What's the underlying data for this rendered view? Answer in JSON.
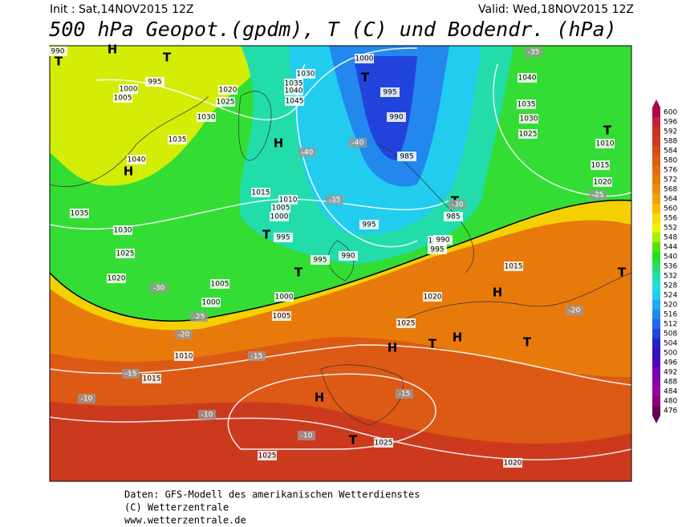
{
  "header": {
    "init": "Init : Sat,14NOV2015 12Z",
    "valid": "Valid: Wed,18NOV2015 12Z",
    "title": "500 hPa Geopot.(gpdm), T (C) und Bodendr. (hPa)"
  },
  "colorbar": {
    "levels": [
      600,
      596,
      592,
      588,
      584,
      580,
      576,
      572,
      568,
      564,
      560,
      556,
      552,
      548,
      544,
      540,
      536,
      532,
      528,
      524,
      520,
      516,
      512,
      508,
      504,
      500,
      496,
      492,
      488,
      484,
      480,
      476
    ],
    "colors": [
      "#b0004f",
      "#c0203a",
      "#c83028",
      "#cc3a1e",
      "#d44a18",
      "#dc5a14",
      "#e26a10",
      "#e87a0c",
      "#ee8c08",
      "#f4a004",
      "#f8bc00",
      "#fcdc00",
      "#f0f000",
      "#aaee00",
      "#55e000",
      "#22dd22",
      "#22dd66",
      "#22ddaa",
      "#22dddd",
      "#22ccee",
      "#22aaee",
      "#2288ee",
      "#2266ee",
      "#2244dd",
      "#2222cc",
      "#3311bb",
      "#5500bb",
      "#7700bb",
      "#8800aa",
      "#990099",
      "#880077",
      "#660055"
    ]
  },
  "map": {
    "labels": [
      "H",
      "T",
      "T",
      "990",
      "1000",
      "1005",
      "995",
      "1020",
      "1025",
      "1030",
      "1035",
      "H",
      "1040",
      "H",
      "1030",
      "1035",
      "1040",
      "1045",
      "T",
      "1000",
      "995",
      "990",
      "985",
      "T",
      "985",
      "1040",
      "1035",
      "1030",
      "1025",
      "T",
      "1010",
      "1015",
      "1020",
      "1035",
      "1030",
      "1025",
      "1020",
      "1015",
      "1010",
      "1005",
      "1000",
      "T",
      "995",
      "995",
      "995",
      "990",
      "T",
      "1005",
      "1000",
      "1000",
      "1005",
      "1010",
      "1015",
      "1020",
      "1025",
      "H",
      "H",
      "T",
      "H",
      "T",
      "1015",
      "T",
      "H",
      "T",
      "1025",
      "1025",
      "1020",
      "-10",
      "-10",
      "-10",
      "-15",
      "-15",
      "-15",
      "-20",
      "-20",
      "-25",
      "-30",
      "-30",
      "-35",
      "-40",
      "-40",
      "-35",
      "-25",
      "1000",
      "995",
      "990"
    ]
  },
  "footer": {
    "line1": "Daten: GFS-Modell des amerikanischen Wetterdienstes",
    "line2": "(C) Wetterzentrale",
    "line3": "www.wetterzentrale.de"
  }
}
